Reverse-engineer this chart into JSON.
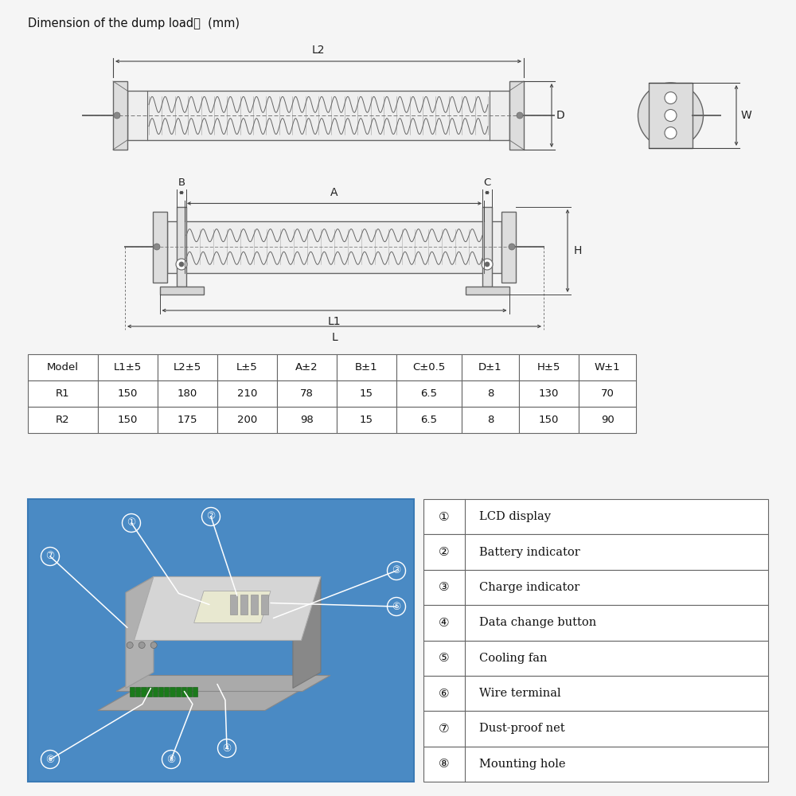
{
  "title": "Dimension of the dump load：  (mm)",
  "bg_color": "#f5f5f5",
  "table_header": [
    "Model",
    "L1±5",
    "L2±5",
    "L±5",
    "A±2",
    "B±1",
    "C±0.5",
    "D±1",
    "H±5",
    "W±1"
  ],
  "table_rows": [
    [
      "R1",
      "150",
      "180",
      "210",
      "78",
      "15",
      "6.5",
      "8",
      "130",
      "70"
    ],
    [
      "R2",
      "150",
      "175",
      "200",
      "98",
      "15",
      "6.5",
      "8",
      "150",
      "90"
    ]
  ],
  "legend_items": [
    [
      "①",
      "LCD display"
    ],
    [
      "②",
      "Battery indicator"
    ],
    [
      "③",
      "Charge indicator"
    ],
    [
      "④",
      "Data change button"
    ],
    [
      "⑤",
      "Cooling fan"
    ],
    [
      "⑥",
      "Wire terminal"
    ],
    [
      "⑦",
      "Dust-proof net"
    ],
    [
      "⑧",
      "Mounting hole"
    ]
  ],
  "blue_bg": "#4a8ac4",
  "line_color": "#666666",
  "dim_color": "#444444",
  "table_border": "#666666",
  "white": "#ffffff"
}
